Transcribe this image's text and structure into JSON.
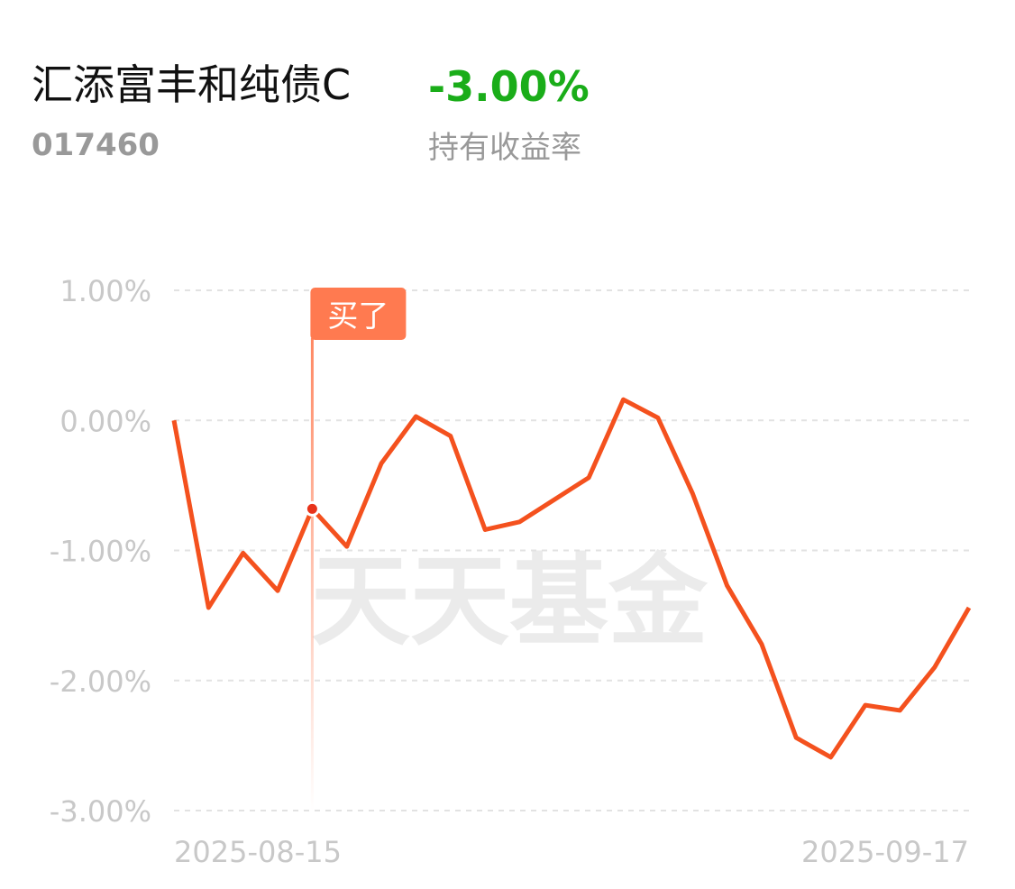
{
  "header": {
    "fund_name": "汇添富丰和纯债C",
    "fund_code": "017460",
    "return_value": "-3.00%",
    "return_label": "持有收益率"
  },
  "chart_data": {
    "type": "line",
    "watermark": "天天基金",
    "categories": [
      "2025-08-15",
      null,
      null,
      null,
      null,
      null,
      null,
      null,
      null,
      null,
      null,
      null,
      null,
      null,
      null,
      null,
      null,
      null,
      null,
      null,
      null,
      null,
      null,
      "2025-09-17"
    ],
    "series": [
      {
        "color": "#f4511e",
        "values": [
          0.0,
          -1.44,
          -1.02,
          -1.31,
          -0.68,
          -0.97,
          -0.33,
          0.03,
          -0.12,
          -0.84,
          -0.78,
          -0.61,
          -0.44,
          0.16,
          0.02,
          -0.56,
          -1.27,
          -1.72,
          -2.44,
          -2.59,
          -2.19,
          -2.23,
          -1.9,
          -1.44
        ]
      }
    ],
    "markers": [
      {
        "label": "买了",
        "category_index": 4
      }
    ],
    "ylim": [
      -3,
      1
    ],
    "yticks": [
      {
        "value": 1,
        "label": "1.00%"
      },
      {
        "value": 0,
        "label": "0.00%"
      },
      {
        "value": -1,
        "label": "-1.00%"
      },
      {
        "value": -2,
        "label": "-2.00%"
      },
      {
        "value": -3,
        "label": "-3.00%"
      }
    ],
    "grid": true
  }
}
